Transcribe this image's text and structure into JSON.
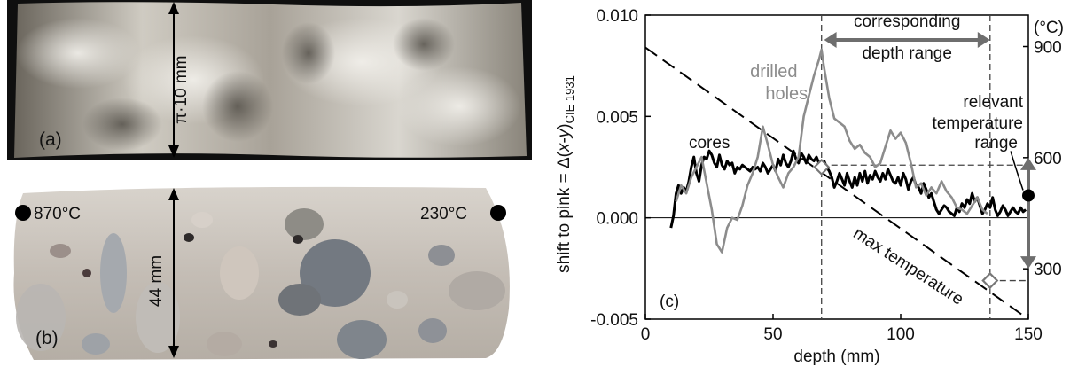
{
  "panel_a": {
    "label": "(a)",
    "dimension": "π·10 mm"
  },
  "panel_b": {
    "label": "(b)",
    "dimension": "44 mm",
    "left_temp": "870°C",
    "right_temp": "230°C"
  },
  "panel_c": {
    "label": "(c)",
    "annotations": {
      "range_top": "corresponding",
      "range_bottom": "depth range",
      "drilled_1": "drilled",
      "drilled_2": "holes",
      "cores": "cores",
      "relevant_1": "relevant",
      "relevant_2": "temperature",
      "relevant_3": "range",
      "max_temperature": "max temperature"
    },
    "colors": {
      "cores": "#000000",
      "drilled": "#8c8c8c",
      "arrow": "#6e6e6e"
    }
  },
  "chart_data": {
    "type": "line",
    "xlabel": "depth (mm)",
    "ylabel_main": "shift to pink = Δ(",
    "ylabel_var": "x",
    "ylabel_mid": "-",
    "ylabel_var2": "y",
    "ylabel_end": ")",
    "ylabel_sub": "CIE 1931",
    "y2label": "(°C)",
    "xlim": [
      0,
      150
    ],
    "ylim": [
      -0.005,
      0.01
    ],
    "y2lim": [
      164,
      985
    ],
    "x_ticks": [
      "0",
      "50",
      "100",
      "150"
    ],
    "x_tick_values": [
      0,
      50,
      100,
      150
    ],
    "y_ticks": [
      "-0.005",
      "0.000",
      "0.005",
      "0.010"
    ],
    "y_tick_values": [
      -0.005,
      0.0,
      0.005,
      0.01
    ],
    "y2_ticks": [
      "300",
      "600",
      "900"
    ],
    "y2_tick_values": [
      300,
      600,
      900
    ],
    "series": [
      {
        "name": "cores",
        "x": [
          10,
          11,
          12,
          13,
          14,
          15,
          16,
          17,
          18,
          19,
          20,
          21,
          22,
          23,
          24,
          25,
          26,
          27,
          28,
          29,
          30,
          31,
          32,
          33,
          34,
          35,
          36,
          37,
          38,
          39,
          40,
          41,
          42,
          43,
          44,
          45,
          46,
          47,
          48,
          49,
          50,
          51,
          52,
          53,
          54,
          55,
          56,
          57,
          58,
          59,
          60,
          61,
          62,
          63,
          64,
          65,
          66,
          67,
          68,
          69,
          70,
          71,
          72,
          73,
          74,
          75,
          76,
          77,
          78,
          79,
          80,
          81,
          82,
          83,
          84,
          85,
          86,
          87,
          88,
          89,
          90,
          91,
          92,
          93,
          94,
          95,
          96,
          97,
          98,
          99,
          100,
          101,
          102,
          103,
          104,
          105,
          106,
          107,
          108,
          109,
          110,
          111,
          112,
          113,
          114,
          115,
          116,
          117,
          118,
          119,
          120,
          121,
          122,
          123,
          124,
          125,
          126,
          127,
          128,
          129,
          130,
          131,
          132,
          133,
          134,
          135,
          136,
          137,
          138,
          139,
          140,
          141,
          142,
          143,
          144,
          145,
          146,
          147,
          148,
          149
        ],
        "y": [
          -0.0005,
          0.0001,
          0.0012,
          0.0016,
          0.0012,
          0.0015,
          0.0013,
          0.0018,
          0.0025,
          0.003,
          0.0022,
          0.0018,
          0.0026,
          0.003,
          0.0029,
          0.0033,
          0.0031,
          0.0027,
          0.0025,
          0.0031,
          0.0026,
          0.0024,
          0.0028,
          0.0026,
          0.0027,
          0.0022,
          0.0025,
          0.0024,
          0.0026,
          0.0025,
          0.0024,
          0.0023,
          0.0025,
          0.0024,
          0.0025,
          0.0023,
          0.0027,
          0.0025,
          0.0022,
          0.0024,
          0.0026,
          0.0023,
          0.0029,
          0.0026,
          0.0031,
          0.0027,
          0.0025,
          0.0028,
          0.0033,
          0.0029,
          0.0027,
          0.0032,
          0.003,
          0.0027,
          0.0031,
          0.0029,
          0.0028,
          0.003,
          0.0027,
          0.0025,
          0.0028,
          0.0025,
          0.0023,
          0.002,
          0.0015,
          0.0018,
          0.0022,
          0.0019,
          0.0016,
          0.0022,
          0.0018,
          0.0015,
          0.002,
          0.0016,
          0.0022,
          0.0018,
          0.0023,
          0.0017,
          0.0021,
          0.0019,
          0.0023,
          0.002,
          0.0018,
          0.0022,
          0.0019,
          0.0024,
          0.0021,
          0.0018,
          0.0017,
          0.002,
          0.0016,
          0.0022,
          0.0019,
          0.0014,
          0.0018,
          0.002,
          0.0016,
          0.0015,
          0.0012,
          0.0017,
          0.0014,
          0.001,
          0.0012,
          0.0008,
          0.0004,
          0.0002,
          0.0004,
          0.0006,
          0.0005,
          0.0003,
          0.0002,
          0.0001,
          0.0005,
          0.0003,
          0.0007,
          0.0005,
          0.0009,
          0.0007,
          0.0012,
          0.0008,
          0.001,
          0.0006,
          0.0002,
          0.0004,
          0.0007,
          0.0005,
          0.001,
          0.0004,
          0.0001,
          0.0003,
          0.0006,
          0.0004,
          0.0001,
          0.0003,
          0.0005,
          0.0003,
          0.0002,
          0.0005,
          0.0003,
          0.0004
        ]
      },
      {
        "name": "drilled holes",
        "x": [
          12,
          14,
          16,
          18,
          20,
          22,
          24,
          26,
          28,
          30,
          32,
          34,
          36,
          38,
          40,
          42,
          44,
          46,
          48,
          50,
          52,
          54,
          56,
          58,
          60,
          62,
          64,
          66,
          68,
          69,
          70,
          72,
          74,
          76,
          78,
          80,
          82,
          84,
          86,
          88,
          90,
          92,
          94,
          96,
          98,
          100,
          102,
          104,
          106,
          108,
          110,
          112,
          114,
          116,
          118,
          120,
          122,
          124,
          126,
          128,
          130,
          132,
          134
        ],
        "y": [
          0.0008,
          0.0016,
          0.0012,
          0.002,
          0.0025,
          0.003,
          0.0017,
          0.0004,
          -0.0013,
          -0.0017,
          -0.0005,
          0.0,
          -0.0001,
          0.0006,
          0.0016,
          0.0022,
          0.003,
          0.0045,
          0.0036,
          0.0026,
          0.002,
          0.0015,
          0.0022,
          0.0025,
          0.003,
          0.005,
          0.006,
          0.007,
          0.0078,
          0.0083,
          0.0074,
          0.0059,
          0.0049,
          0.0047,
          0.0045,
          0.0038,
          0.0034,
          0.0036,
          0.0032,
          0.003,
          0.0025,
          0.0027,
          0.0035,
          0.0043,
          0.0039,
          0.0042,
          0.0037,
          0.0027,
          0.0015,
          0.0017,
          0.0011,
          0.0015,
          0.0012,
          0.0018,
          0.0013,
          0.001,
          0.0005,
          0.0004,
          0.0002,
          0.0006,
          0.001,
          0.0004,
          0.0002
        ]
      }
    ],
    "max_temperature_line": {
      "x": [
        0,
        150
      ],
      "y": [
        0.0084,
        -0.005
      ]
    },
    "markers": [
      {
        "x": 69,
        "y": 0.0025
      },
      {
        "x": 135,
        "y": -0.0031
      }
    ],
    "vlines": [
      69,
      135
    ],
    "hlines": [
      0.0026,
      -0.0031
    ],
    "relevant_point": {
      "x": 150,
      "y": 0.0011
    },
    "relevant_range_y2": [
      300,
      600
    ],
    "range_arrow_x": [
      70,
      135
    ],
    "grid": false
  }
}
